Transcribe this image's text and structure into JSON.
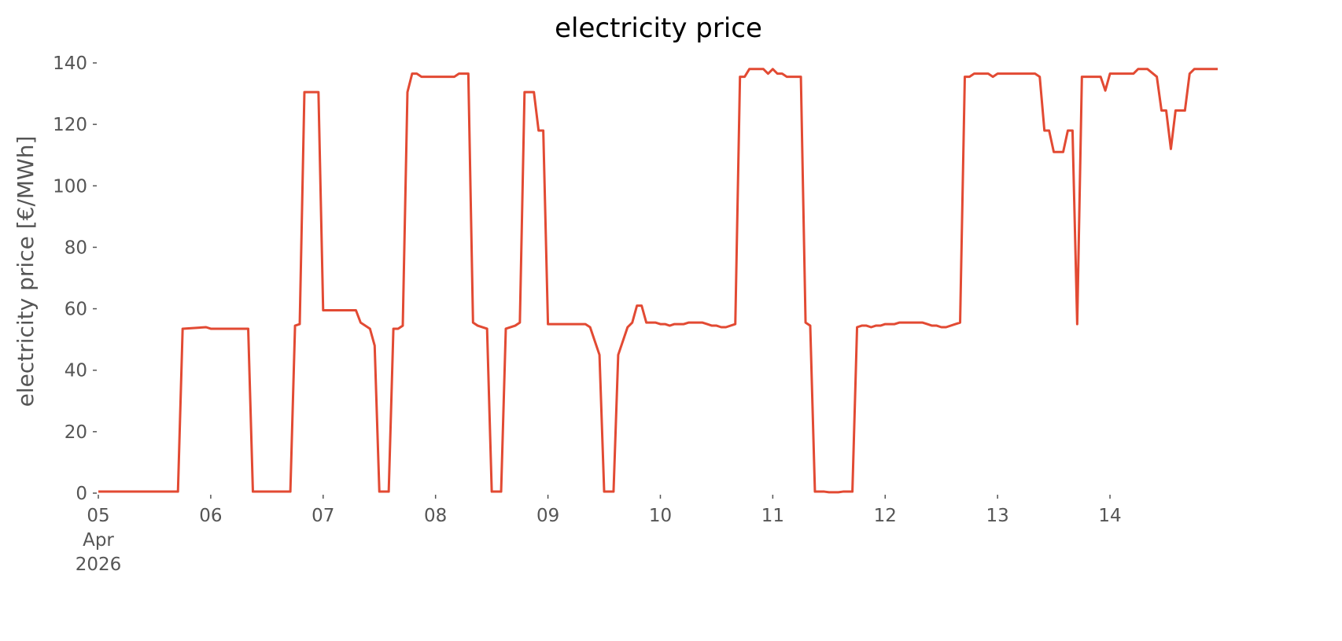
{
  "chart_data": {
    "type": "line",
    "title": "electricity price",
    "ylabel": "electricity price [€/MWh]",
    "xlim": [
      "2026-04-05T00:00",
      "2026-04-14T23:00"
    ],
    "xticks": [
      {
        "value": "2026-04-05T00:00",
        "label": "05\nApr\n2026"
      },
      {
        "value": "2026-04-06T00:00",
        "label": "06"
      },
      {
        "value": "2026-04-07T00:00",
        "label": "07"
      },
      {
        "value": "2026-04-08T00:00",
        "label": "08"
      },
      {
        "value": "2026-04-09T00:00",
        "label": "09"
      },
      {
        "value": "2026-04-10T00:00",
        "label": "10"
      },
      {
        "value": "2026-04-11T00:00",
        "label": "11"
      },
      {
        "value": "2026-04-12T00:00",
        "label": "12"
      },
      {
        "value": "2026-04-13T00:00",
        "label": "13"
      },
      {
        "value": "2026-04-14T00:00",
        "label": "14"
      }
    ],
    "ylim": [
      0,
      140
    ],
    "yticks": [
      0,
      20,
      40,
      60,
      80,
      100,
      120,
      140
    ],
    "grid": false,
    "x": [
      "2026-04-05T00:00",
      "2026-04-05T17:00",
      "2026-04-05T18:00",
      "2026-04-05T23:00",
      "2026-04-06T00:00",
      "2026-04-06T08:00",
      "2026-04-06T09:00",
      "2026-04-06T17:00",
      "2026-04-06T18:00",
      "2026-04-06T19:00",
      "2026-04-06T20:00",
      "2026-04-06T23:00",
      "2026-04-07T00:00",
      "2026-04-07T07:00",
      "2026-04-07T08:00",
      "2026-04-07T10:00",
      "2026-04-07T11:00",
      "2026-04-07T12:00",
      "2026-04-07T14:00",
      "2026-04-07T15:00",
      "2026-04-07T16:00",
      "2026-04-07T17:00",
      "2026-04-07T18:00",
      "2026-04-07T19:00",
      "2026-04-07T20:00",
      "2026-04-07T21:00",
      "2026-04-08T04:00",
      "2026-04-08T05:00",
      "2026-04-08T07:00",
      "2026-04-08T08:00",
      "2026-04-08T09:00",
      "2026-04-08T11:00",
      "2026-04-08T12:00",
      "2026-04-08T14:00",
      "2026-04-08T15:00",
      "2026-04-08T17:00",
      "2026-04-08T18:00",
      "2026-04-08T19:00",
      "2026-04-08T21:00",
      "2026-04-08T22:00",
      "2026-04-08T23:00",
      "2026-04-09T00:00",
      "2026-04-09T08:00",
      "2026-04-09T09:00",
      "2026-04-09T11:00",
      "2026-04-09T12:00",
      "2026-04-09T14:00",
      "2026-04-09T15:00",
      "2026-04-09T17:00",
      "2026-04-09T18:00",
      "2026-04-09T19:00",
      "2026-04-09T20:00",
      "2026-04-09T21:00",
      "2026-04-09T23:00",
      "2026-04-10T00:00",
      "2026-04-10T01:00",
      "2026-04-10T02:00",
      "2026-04-10T03:00",
      "2026-04-10T05:00",
      "2026-04-10T06:00",
      "2026-04-10T09:00",
      "2026-04-10T10:00",
      "2026-04-10T11:00",
      "2026-04-10T12:00",
      "2026-04-10T13:00",
      "2026-04-10T14:00",
      "2026-04-10T16:00",
      "2026-04-10T17:00",
      "2026-04-10T18:00",
      "2026-04-10T19:00",
      "2026-04-10T22:00",
      "2026-04-10T23:00",
      "2026-04-11T00:00",
      "2026-04-11T01:00",
      "2026-04-11T02:00",
      "2026-04-11T03:00",
      "2026-04-11T06:00",
      "2026-04-11T07:00",
      "2026-04-11T08:00",
      "2026-04-11T09:00",
      "2026-04-11T11:00",
      "2026-04-11T12:00",
      "2026-04-11T14:00",
      "2026-04-11T15:00",
      "2026-04-11T17:00",
      "2026-04-11T18:00",
      "2026-04-11T19:00",
      "2026-04-11T20:00",
      "2026-04-11T21:00",
      "2026-04-11T22:00",
      "2026-04-11T23:00",
      "2026-04-12T00:00",
      "2026-04-12T02:00",
      "2026-04-12T03:00",
      "2026-04-12T08:00",
      "2026-04-12T09:00",
      "2026-04-12T10:00",
      "2026-04-12T11:00",
      "2026-04-12T12:00",
      "2026-04-12T13:00",
      "2026-04-12T15:00",
      "2026-04-12T16:00",
      "2026-04-12T17:00",
      "2026-04-12T18:00",
      "2026-04-12T19:00",
      "2026-04-12T22:00",
      "2026-04-12T23:00",
      "2026-04-13T00:00",
      "2026-04-13T08:00",
      "2026-04-13T09:00",
      "2026-04-13T10:00",
      "2026-04-13T11:00",
      "2026-04-13T12:00",
      "2026-04-13T14:00",
      "2026-04-13T15:00",
      "2026-04-13T16:00",
      "2026-04-13T17:00",
      "2026-04-13T18:00",
      "2026-04-13T22:00",
      "2026-04-13T23:00",
      "2026-04-14T00:00",
      "2026-04-14T05:00",
      "2026-04-14T06:00",
      "2026-04-14T08:00",
      "2026-04-14T10:00",
      "2026-04-14T11:00",
      "2026-04-14T12:00",
      "2026-04-14T13:00",
      "2026-04-14T14:00",
      "2026-04-14T16:00",
      "2026-04-14T17:00",
      "2026-04-14T18:00",
      "2026-04-14T23:00"
    ],
    "series": [
      {
        "color": "#e24a33",
        "values": [
          0.5,
          0.5,
          53.5,
          54,
          53.5,
          53.5,
          0.5,
          0.5,
          54.5,
          55,
          130.5,
          130.5,
          59.5,
          59.5,
          55.5,
          53.5,
          48,
          0.5,
          0.5,
          53.5,
          53.5,
          54.5,
          130.5,
          136.5,
          136.5,
          135.5,
          135.5,
          136.5,
          136.5,
          55.5,
          54.5,
          53.5,
          0.5,
          0.5,
          53.5,
          54.5,
          55.5,
          130.5,
          130.5,
          118,
          118,
          55,
          55,
          54,
          45,
          0.5,
          0.5,
          45,
          54,
          55.5,
          61,
          61,
          55.5,
          55.5,
          55,
          55,
          54.5,
          55,
          55,
          55.5,
          55.5,
          55,
          54.5,
          54.5,
          54,
          54,
          55,
          135.5,
          135.5,
          138,
          138,
          136.5,
          138,
          136.5,
          136.5,
          135.5,
          135.5,
          55.5,
          54.5,
          0.5,
          0.5,
          0.3,
          0.3,
          0.5,
          0.5,
          54,
          54.5,
          54.5,
          54,
          54.5,
          54.5,
          55,
          55,
          55.5,
          55.5,
          55,
          54.5,
          54.5,
          54,
          54,
          55,
          55.5,
          135.5,
          135.5,
          136.5,
          136.5,
          135.5,
          136.5,
          136.5,
          135.5,
          118,
          118,
          111,
          111,
          118,
          118,
          55,
          135.5,
          135.5,
          131,
          136.5,
          136.5,
          138,
          138,
          135.5,
          124.5,
          124.5,
          112,
          124.5,
          124.5,
          136.5,
          138,
          138
        ]
      }
    ]
  }
}
